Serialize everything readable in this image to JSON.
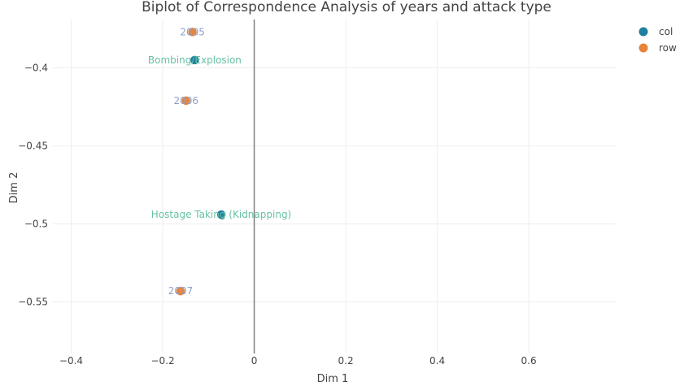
{
  "chart_data": {
    "type": "scatter",
    "title": "Biplot of Correspondence Analysis of years and attack type",
    "xlabel": "Dim 1",
    "ylabel": "Dim 2",
    "xlim": [
      -0.44,
      0.79
    ],
    "ylim": [
      -0.583,
      -0.369
    ],
    "x_ticks": [
      -0.4,
      -0.2,
      0,
      0.2,
      0.4,
      0.6
    ],
    "x_tick_labels": [
      "−0.4",
      "−0.2",
      "0",
      "0.2",
      "0.4",
      "0.6"
    ],
    "y_ticks": [
      -0.4,
      -0.45,
      -0.5,
      -0.55
    ],
    "y_tick_labels": [
      "−0.4",
      "−0.45",
      "−0.5",
      "−0.55"
    ],
    "grid": true,
    "legend_position": "top-right",
    "series": [
      {
        "name": "col",
        "color": "#1f7f9f",
        "label_color": "#66c2a5",
        "points": [
          {
            "label": "Bombing/Explosion",
            "x": -0.13,
            "y": -0.395
          },
          {
            "label": "Hostage Taking (Kidnapping)",
            "x": -0.072,
            "y": -0.494
          }
        ]
      },
      {
        "name": "row",
        "color": "#e6843a",
        "label_color": "#8da0cb",
        "points": [
          {
            "label": "2005",
            "x": -0.135,
            "y": -0.377
          },
          {
            "label": "2006",
            "x": -0.149,
            "y": -0.421
          },
          {
            "label": "2007",
            "x": -0.161,
            "y": -0.543
          }
        ]
      }
    ]
  }
}
